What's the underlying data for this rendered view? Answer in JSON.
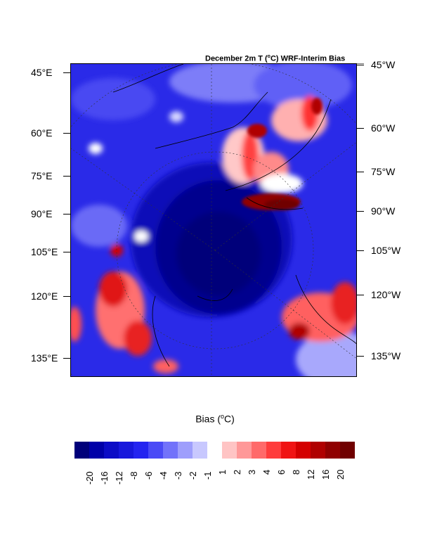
{
  "title": {
    "prefix": "December 2m T (",
    "unit_sup": "o",
    "suffix": "C) WRF-Interim Bias"
  },
  "left_labels": [
    "45°E",
    "60°E",
    "75°E",
    "90°E",
    "105°E",
    "120°E",
    "135°E"
  ],
  "right_labels": [
    "45°W",
    "60°W",
    "75°W",
    "90°W",
    "105°W",
    "120°W",
    "135°W"
  ],
  "colorbar": {
    "title_prefix": "Bias (",
    "title_sup": "o",
    "title_suffix": "C)",
    "levels": [
      "-20",
      "-16",
      "-12",
      "-8",
      "-6",
      "-4",
      "-3",
      "-2",
      "-1",
      "1",
      "2",
      "3",
      "4",
      "6",
      "8",
      "12",
      "16",
      "20"
    ],
    "colors": [
      "#00007a",
      "#0000a8",
      "#0c0cc6",
      "#1818dc",
      "#2424f0",
      "#4a4af6",
      "#7272fa",
      "#9e9efc",
      "#c8c8fe",
      "#ffffff",
      "#ffc4c4",
      "#ff9898",
      "#ff6a6a",
      "#ff3c3c",
      "#f01414",
      "#d40000",
      "#b00000",
      "#900000",
      "#700000"
    ]
  }
}
